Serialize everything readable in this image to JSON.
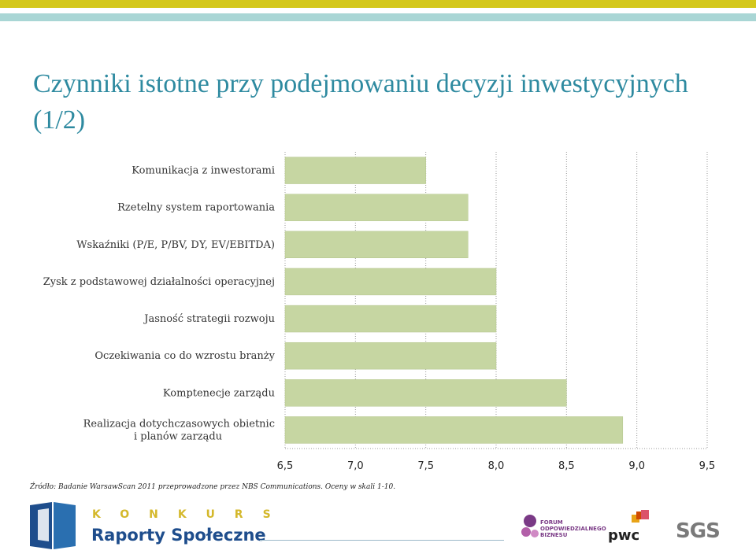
{
  "title": "Czynniki istotne przy podejmowaniu decyzji inwestycyjnych (1/2)",
  "source_note": "Źródło: Badanie WarsawScan 2011 przeprowadzone przez NBS Communications. Oceny w skali 1-10.",
  "colors": {
    "title": "#2e8aa0",
    "bar_fill": "#c6d6a2",
    "bar_stroke": "#ffffff",
    "stripe_top": "#d4c81b",
    "stripe_second": "#a9d6d5"
  },
  "chart_data": {
    "type": "bar",
    "orientation": "horizontal",
    "categories": [
      "Komunikacja z inwestorami",
      "Rzetelny system raportowania",
      "Wskaźniki (P/E, P/BV, DY, EV/EBITDA)",
      "Zysk z podstawowej działalności operacyjnej",
      "Jasność strategii rozwoju",
      "Oczekiwania co do wzrostu branży",
      "Komptenecje zarządu",
      [
        "Realizacja dotychczasowych obietnic",
        "i planów zarządu"
      ]
    ],
    "values": [
      7.5,
      7.8,
      7.8,
      8.0,
      8.0,
      8.0,
      8.5,
      8.9
    ],
    "xlim": [
      6.5,
      9.5
    ],
    "xticks": [
      "6,5",
      "7,0",
      "7,5",
      "8,0",
      "8,5",
      "9,0",
      "9,5"
    ],
    "xtick_values": [
      6.5,
      7.0,
      7.5,
      8.0,
      8.5,
      9.0,
      9.5
    ],
    "grid": "vertical-dotted"
  },
  "footer": {
    "konkurs_word": "KONKURS",
    "konkurs_subtitle": "Raporty Społeczne",
    "forum_text": [
      "FORUM",
      "ODPOWIEDZIALNEGO",
      "BIZNESU"
    ],
    "pwc_text": "pwc",
    "sgs_text": "SGS"
  }
}
